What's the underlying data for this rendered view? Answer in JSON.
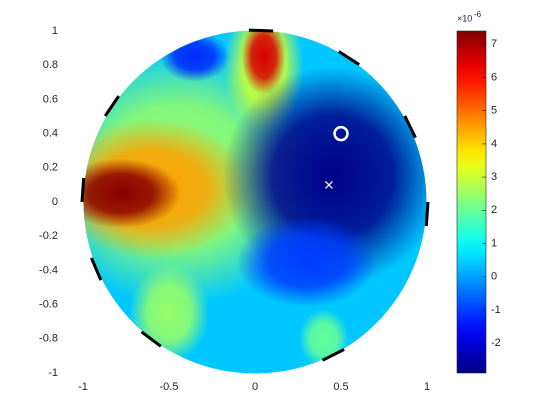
{
  "chart_data": {
    "type": "field",
    "xlim": [
      -1,
      1
    ],
    "ylim": [
      -1,
      1
    ],
    "xticks": [
      -1,
      -0.5,
      0,
      0.5,
      1
    ],
    "yticks": [
      -1,
      -0.8,
      -0.6,
      -0.4,
      -0.2,
      0,
      0.2,
      0.4,
      0.6,
      0.8,
      1
    ],
    "colormap": "jet",
    "clim": [
      -2.9,
      7.4
    ],
    "cticks": [
      -2,
      -1,
      0,
      1,
      2,
      3,
      4,
      5,
      6,
      7
    ],
    "colorbar_exponent": "×10",
    "colorbar_exponent_power": "-6",
    "background_value": 0.4,
    "features": {
      "x": [
        -0.45,
        -0.6,
        -0.78,
        0.05,
        0.05,
        0.45,
        0.3,
        -0.35,
        -0.5,
        0.4
      ],
      "y": [
        0.15,
        0.08,
        0.05,
        0.8,
        0.85,
        0.15,
        -0.35,
        0.85,
        -0.65,
        -0.8
      ],
      "values": [
        2.5,
        4.5,
        7.3,
        3,
        6.5,
        -2.8,
        -1,
        -1.2,
        2.5,
        2
      ]
    },
    "markers": {
      "circle": {
        "x": 0.5,
        "y": 0.4
      },
      "cross": {
        "x": 0.43,
        "y": 0.1
      }
    }
  }
}
